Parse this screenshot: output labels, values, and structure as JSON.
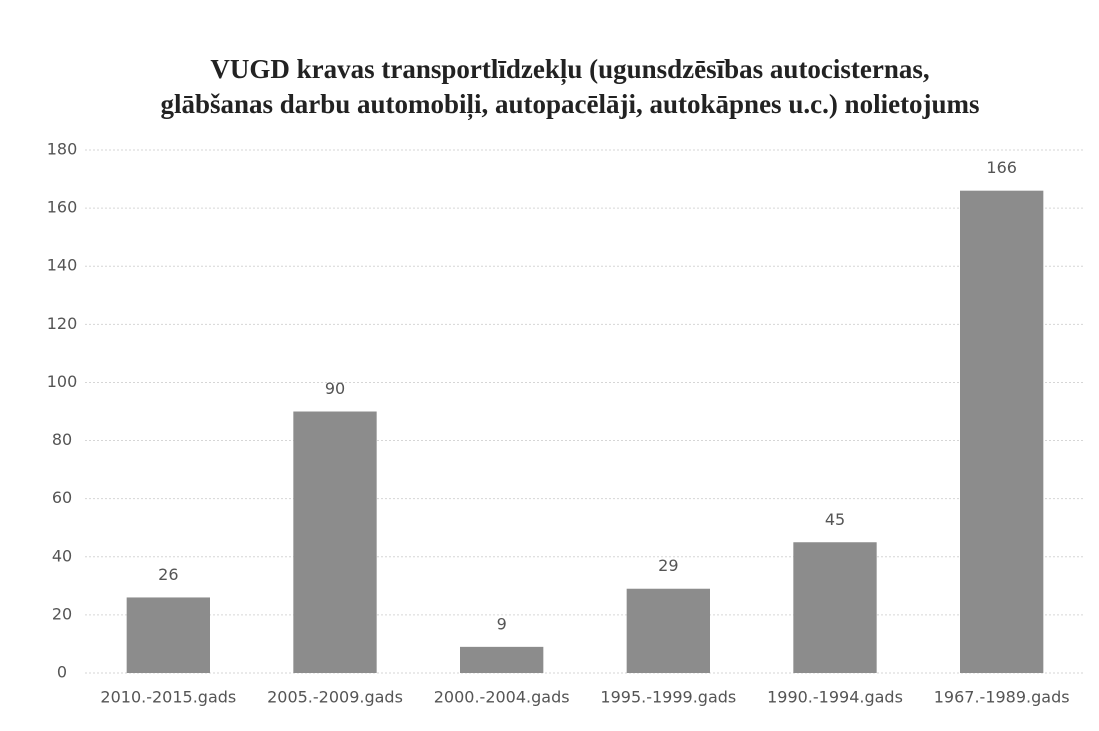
{
  "chart_data": {
    "type": "bar",
    "title": [
      "VUGD kravas transportlīdzekļu (ugunsdzēsības autocisternas,",
      "glābšanas darbu automobiļi, autopacēlāji, autokāpnes u.c.)  nolietojums"
    ],
    "categories": [
      "2010.-2015.gads",
      "2005.-2009.gads",
      "2000.-2004.gads",
      "1995.-1999.gads",
      "1990.-1994.gads",
      "1967.-1989.gads"
    ],
    "values": [
      26,
      90,
      9,
      29,
      45,
      166
    ],
    "color": "#8c8c8c",
    "ylim": [
      0,
      180
    ],
    "yticks": [
      0,
      20,
      40,
      60,
      80,
      100,
      120,
      140,
      160,
      180
    ],
    "grid": true
  }
}
